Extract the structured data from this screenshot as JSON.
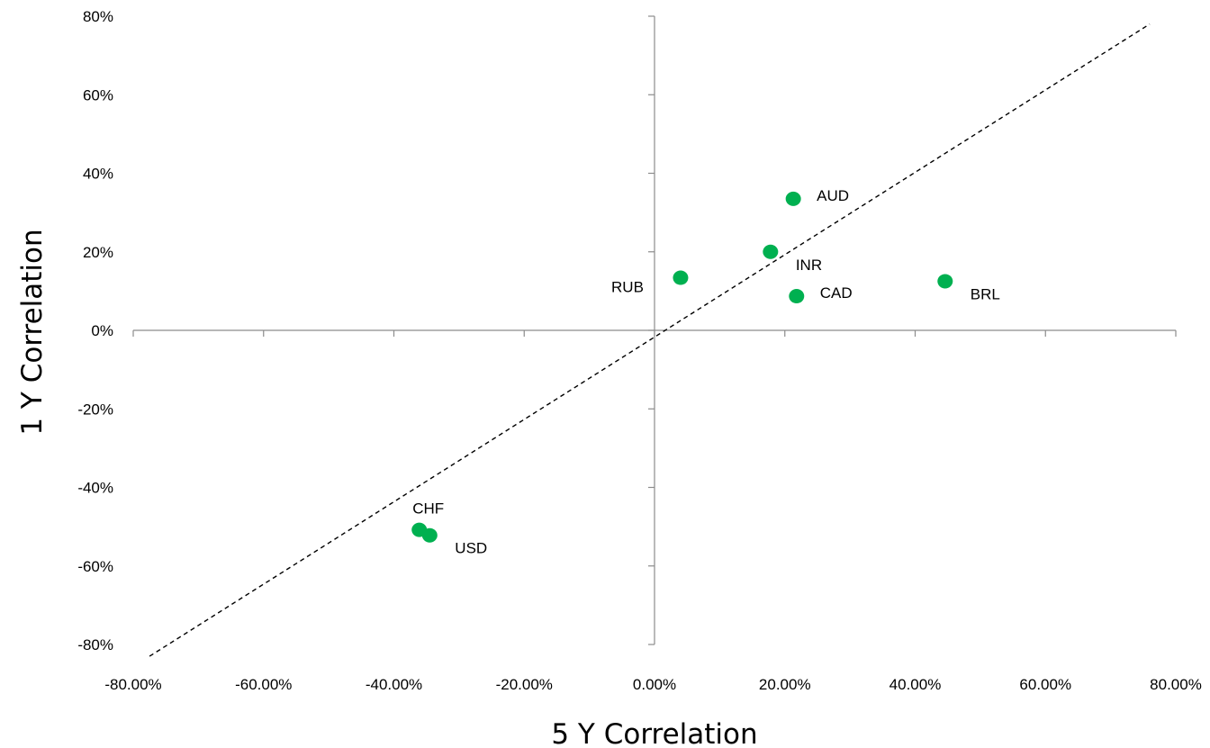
{
  "chart_data": {
    "type": "scatter",
    "title": "",
    "xlabel": "5 Y Correlation",
    "ylabel": "1 Y Correlation",
    "xlim": [
      -0.8,
      0.8
    ],
    "ylim": [
      -0.8,
      0.8
    ],
    "x_ticks": [
      -0.8,
      -0.6,
      -0.4,
      -0.2,
      0.0,
      0.2,
      0.4,
      0.6,
      0.8
    ],
    "x_tick_labels": [
      "-80.00%",
      "-60.00%",
      "-40.00%",
      "-20.00%",
      "0.00%",
      "20.00%",
      "40.00%",
      "60.00%",
      "80.00%"
    ],
    "y_ticks": [
      0.8,
      0.6,
      0.4,
      0.2,
      0.0,
      -0.2,
      -0.4,
      -0.6,
      -0.8
    ],
    "y_tick_labels": [
      "80%",
      "60%",
      "40%",
      "20%",
      "0%",
      "-20%",
      "-40%",
      "-60%",
      "-80%"
    ],
    "grid": false,
    "point_color": "#00b050",
    "reference_line": {
      "style": "dashed",
      "from": [
        -0.775,
        -0.83
      ],
      "to": [
        0.76,
        0.78
      ]
    },
    "points": [
      {
        "label": "AUD",
        "x": 0.213,
        "y": 0.335,
        "label_pos": "right"
      },
      {
        "label": "INR",
        "x": 0.178,
        "y": 0.2,
        "label_pos": "below-right"
      },
      {
        "label": "RUB",
        "x": 0.04,
        "y": 0.134,
        "label_pos": "left"
      },
      {
        "label": "CAD",
        "x": 0.218,
        "y": 0.087,
        "label_pos": "right"
      },
      {
        "label": "BRL",
        "x": 0.446,
        "y": 0.125,
        "label_pos": "below-right"
      },
      {
        "label": "CHF",
        "x": -0.361,
        "y": -0.508,
        "label_pos": "above"
      },
      {
        "label": "USD",
        "x": -0.345,
        "y": -0.522,
        "label_pos": "below-right"
      }
    ]
  }
}
